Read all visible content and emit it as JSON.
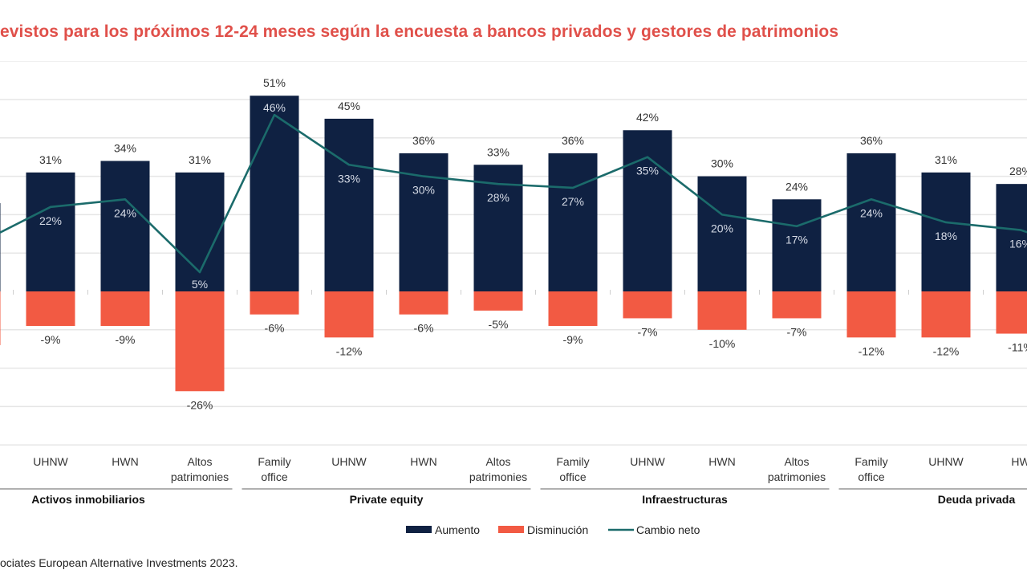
{
  "title": "evistos para los próximos 12-24 meses según la encuesta a bancos privados y gestores de patrimonios",
  "source": "ociates European Alternative Investments 2023.",
  "colors": {
    "title": "#e0504a",
    "aumento": "#0f2142",
    "disminucion": "#f25a43",
    "cambio_neto": "#1b6b6b",
    "grid": "#e6e6e6",
    "axis_group_rule": "#b0b0b0"
  },
  "chart_data": {
    "type": "bar",
    "title": "evistos para los próximos 12-24 meses según la encuesta a bancos privados y gestores de patrimonios",
    "xlabel": "",
    "ylabel": "",
    "ylim": [
      -40,
      50
    ],
    "grid": true,
    "gridline_step": 10,
    "legend_position": "bottom-center",
    "legend": [
      "Aumento",
      "Disminución",
      "Cambio neto"
    ],
    "partial_left_category": {
      "label": "",
      "aumento": 23,
      "disminucion": -14,
      "cambio_neto": 13
    },
    "categories": [
      "UHNW",
      "HWN",
      "Altos patrimonies",
      "Family office",
      "UHNW",
      "HWN",
      "Altos patrimonies",
      "Family office",
      "UHNW",
      "HWN",
      "Altos patrimonies",
      "Family office",
      "UHNW",
      "HWN"
    ],
    "category_lines": [
      [
        "UHNW"
      ],
      [
        "HWN"
      ],
      [
        "Altos",
        "patrimonies"
      ],
      [
        "Family",
        "office"
      ],
      [
        "UHNW"
      ],
      [
        "HWN"
      ],
      [
        "Altos",
        "patrimonies"
      ],
      [
        "Family",
        "office"
      ],
      [
        "UHNW"
      ],
      [
        "HWN"
      ],
      [
        "Altos",
        "patrimonies"
      ],
      [
        "Family",
        "office"
      ],
      [
        "UHNW"
      ],
      [
        "HW"
      ]
    ],
    "groups": [
      {
        "name": "Activos inmobiliarios",
        "from": -1,
        "to": 2
      },
      {
        "name": "Private equity",
        "from": 3,
        "to": 6
      },
      {
        "name": "Infraestructuras",
        "from": 7,
        "to": 10
      },
      {
        "name": "Deuda privada",
        "from": 11,
        "to": 14
      }
    ],
    "series": [
      {
        "name": "Aumento",
        "kind": "bar",
        "values": [
          31,
          34,
          31,
          51,
          45,
          36,
          33,
          36,
          42,
          30,
          24,
          36,
          31,
          28
        ],
        "labels": [
          "31%",
          "34%",
          "31%",
          "51%",
          "45%",
          "36%",
          "33%",
          "36%",
          "42%",
          "30%",
          "24%",
          "36%",
          "31%",
          "28%"
        ]
      },
      {
        "name": "Disminución",
        "kind": "bar",
        "values": [
          -9,
          -9,
          -26,
          -6,
          -12,
          -6,
          -5,
          -9,
          -7,
          -10,
          -7,
          -12,
          -12,
          -11
        ],
        "labels": [
          "-9%",
          "-9%",
          "-26%",
          "-6%",
          "-12%",
          "-6%",
          "-5%",
          "-9%",
          "-7%",
          "-10%",
          "-7%",
          "-12%",
          "-12%",
          "-11%"
        ]
      },
      {
        "name": "Cambio neto",
        "kind": "line",
        "values": [
          22,
          24,
          5,
          46,
          33,
          30,
          28,
          27,
          35,
          20,
          17,
          24,
          18,
          16
        ],
        "labels": [
          "22%",
          "24%",
          "5%",
          "46%",
          "33%",
          "30%",
          "28%",
          "27%",
          "35%",
          "20%",
          "17%",
          "24%",
          "18%",
          "16%"
        ]
      }
    ]
  }
}
